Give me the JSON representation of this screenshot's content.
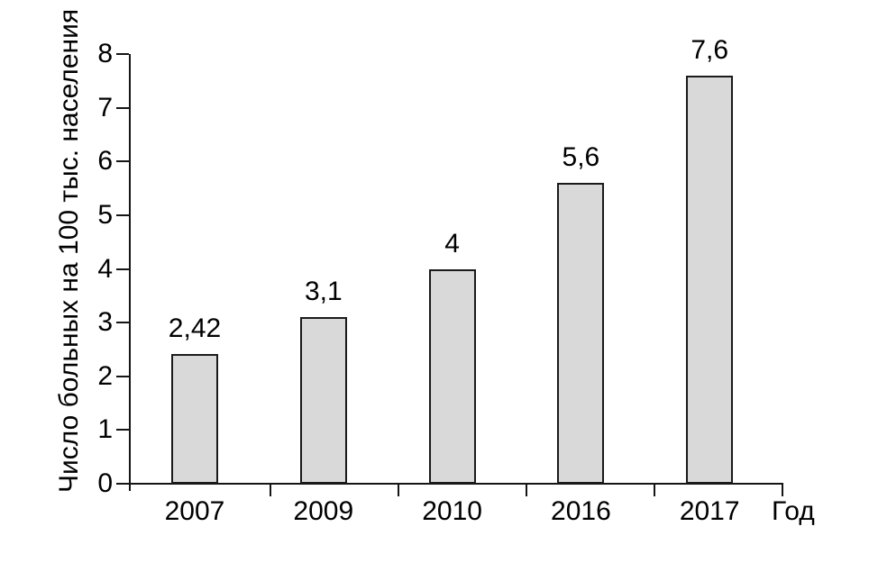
{
  "chart_data": {
    "type": "bar",
    "categories": [
      "2007",
      "2009",
      "2010",
      "2016",
      "2017"
    ],
    "values": [
      2.42,
      3.1,
      4,
      5.6,
      7.6
    ],
    "value_labels": [
      "2,42",
      "3,1",
      "4",
      "5,6",
      "7,6"
    ],
    "xlabel": "Год",
    "ylabel": "Число больных на 100 тыс. населения",
    "ylim": [
      0,
      8
    ],
    "yticks": [
      0,
      1,
      2,
      3,
      4,
      5,
      6,
      7,
      8
    ],
    "ytick_labels": [
      "0",
      "1",
      "2",
      "3",
      "4",
      "5",
      "6",
      "7",
      "8"
    ],
    "grid": false,
    "legend": "none",
    "bar_fill": "#d9d9d9",
    "bar_border": "#1a1a1a",
    "axis_color": "#151515",
    "text_color": "#000000",
    "background": "#ffffff"
  }
}
